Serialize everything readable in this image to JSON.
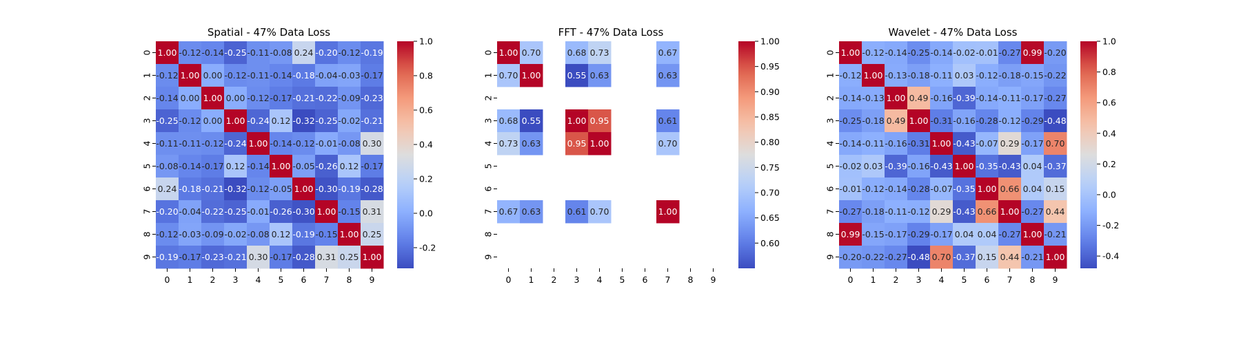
{
  "chart_data": [
    {
      "type": "heatmap",
      "title": "Spatial - 47% Data Loss",
      "x_ticks": [
        "0",
        "1",
        "2",
        "3",
        "4",
        "5",
        "6",
        "7",
        "8",
        "9"
      ],
      "y_ticks": [
        "0",
        "1",
        "2",
        "3",
        "4",
        "5",
        "6",
        "7",
        "8",
        "9"
      ],
      "colormap": "coolwarm",
      "vmin": -0.32,
      "vmax": 1.0,
      "colorbar_ticks": [
        "-0.2",
        "0.0",
        "0.2",
        "0.4",
        "0.6",
        "0.8",
        "1.0"
      ],
      "colorbar_tick_values": [
        -0.2,
        0.0,
        0.2,
        0.4,
        0.6,
        0.8,
        1.0
      ],
      "matrix": [
        [
          1.0,
          -0.12,
          -0.14,
          -0.25,
          -0.11,
          -0.08,
          0.24,
          -0.2,
          -0.12,
          -0.19
        ],
        [
          -0.12,
          1.0,
          -0.0,
          -0.12,
          -0.11,
          -0.14,
          -0.18,
          -0.04,
          -0.03,
          -0.17
        ],
        [
          -0.14,
          -0.0,
          1.0,
          0.0,
          -0.12,
          -0.17,
          -0.21,
          -0.22,
          -0.09,
          -0.23
        ],
        [
          -0.25,
          -0.12,
          0.0,
          1.0,
          -0.24,
          0.12,
          -0.32,
          -0.25,
          -0.02,
          -0.21
        ],
        [
          -0.11,
          -0.11,
          -0.12,
          -0.24,
          1.0,
          -0.14,
          -0.12,
          -0.01,
          -0.08,
          0.3
        ],
        [
          -0.08,
          -0.14,
          -0.17,
          0.12,
          -0.14,
          1.0,
          -0.05,
          -0.26,
          0.12,
          -0.17
        ],
        [
          0.24,
          -0.18,
          -0.21,
          -0.32,
          -0.12,
          -0.05,
          1.0,
          -0.3,
          -0.19,
          -0.28
        ],
        [
          -0.2,
          -0.04,
          -0.22,
          -0.25,
          -0.01,
          -0.26,
          -0.3,
          1.0,
          -0.15,
          0.31
        ],
        [
          -0.12,
          -0.03,
          -0.09,
          -0.02,
          -0.08,
          0.12,
          -0.19,
          -0.15,
          1.0,
          0.25
        ],
        [
          -0.19,
          -0.17,
          -0.23,
          -0.21,
          0.3,
          -0.17,
          -0.28,
          0.31,
          0.25,
          1.0
        ]
      ]
    },
    {
      "type": "heatmap",
      "title": "FFT - 47% Data Loss",
      "x_ticks": [
        "0",
        "1",
        "2",
        "3",
        "4",
        "5",
        "6",
        "7",
        "8",
        "9"
      ],
      "y_ticks": [
        "0",
        "1",
        "2",
        "3",
        "4",
        "5",
        "6",
        "7",
        "8",
        "9"
      ],
      "colormap": "coolwarm",
      "vmin": 0.55,
      "vmax": 1.0,
      "colorbar_ticks": [
        "0.60",
        "0.65",
        "0.70",
        "0.75",
        "0.80",
        "0.85",
        "0.90",
        "0.95",
        "1.00"
      ],
      "colorbar_tick_values": [
        0.6,
        0.65,
        0.7,
        0.75,
        0.8,
        0.85,
        0.9,
        0.95,
        1.0
      ],
      "matrix": [
        [
          1.0,
          0.7,
          null,
          0.68,
          0.73,
          null,
          null,
          0.67,
          null,
          null
        ],
        [
          0.7,
          1.0,
          null,
          0.55,
          0.63,
          null,
          null,
          0.63,
          null,
          null
        ],
        [
          null,
          null,
          null,
          null,
          null,
          null,
          null,
          null,
          null,
          null
        ],
        [
          0.68,
          0.55,
          null,
          1.0,
          0.95,
          null,
          null,
          0.61,
          null,
          null
        ],
        [
          0.73,
          0.63,
          null,
          0.95,
          1.0,
          null,
          null,
          0.7,
          null,
          null
        ],
        [
          null,
          null,
          null,
          null,
          null,
          null,
          null,
          null,
          null,
          null
        ],
        [
          null,
          null,
          null,
          null,
          null,
          null,
          null,
          null,
          null,
          null
        ],
        [
          0.67,
          0.63,
          null,
          0.61,
          0.7,
          null,
          null,
          1.0,
          null,
          null
        ],
        [
          null,
          null,
          null,
          null,
          null,
          null,
          null,
          null,
          null,
          null
        ],
        [
          null,
          null,
          null,
          null,
          null,
          null,
          null,
          null,
          null,
          null
        ]
      ]
    },
    {
      "type": "heatmap",
      "title": "Wavelet - 47% Data Loss",
      "x_ticks": [
        "0",
        "1",
        "2",
        "3",
        "4",
        "5",
        "6",
        "7",
        "8",
        "9"
      ],
      "y_ticks": [
        "0",
        "1",
        "2",
        "3",
        "4",
        "5",
        "6",
        "7",
        "8",
        "9"
      ],
      "colormap": "coolwarm",
      "vmin": -0.48,
      "vmax": 1.0,
      "colorbar_ticks": [
        "-0.4",
        "-0.2",
        "0.0",
        "0.2",
        "0.4",
        "0.6",
        "0.8",
        "1.0"
      ],
      "colorbar_tick_values": [
        -0.4,
        -0.2,
        0.0,
        0.2,
        0.4,
        0.6,
        0.8,
        1.0
      ],
      "matrix": [
        [
          1.0,
          -0.12,
          -0.14,
          -0.25,
          -0.14,
          -0.02,
          -0.01,
          -0.27,
          0.99,
          -0.2
        ],
        [
          -0.12,
          1.0,
          -0.13,
          -0.18,
          -0.11,
          0.03,
          -0.12,
          -0.18,
          -0.15,
          -0.22
        ],
        [
          -0.14,
          -0.13,
          1.0,
          0.49,
          -0.16,
          -0.39,
          -0.14,
          -0.11,
          -0.17,
          -0.27
        ],
        [
          -0.25,
          -0.18,
          0.49,
          1.0,
          -0.31,
          -0.16,
          -0.28,
          -0.12,
          -0.29,
          -0.48
        ],
        [
          -0.14,
          -0.11,
          -0.16,
          -0.31,
          1.0,
          -0.43,
          -0.07,
          0.29,
          -0.17,
          0.7
        ],
        [
          -0.02,
          0.03,
          -0.39,
          -0.16,
          -0.43,
          1.0,
          -0.35,
          -0.43,
          0.04,
          -0.37
        ],
        [
          -0.01,
          -0.12,
          -0.14,
          -0.28,
          -0.07,
          -0.35,
          1.0,
          0.66,
          0.04,
          0.15
        ],
        [
          -0.27,
          -0.18,
          -0.11,
          -0.12,
          0.29,
          -0.43,
          0.66,
          1.0,
          -0.27,
          0.44
        ],
        [
          0.99,
          -0.15,
          -0.17,
          -0.29,
          -0.17,
          0.04,
          0.04,
          -0.27,
          1.0,
          -0.21
        ],
        [
          -0.2,
          -0.22,
          -0.27,
          -0.48,
          0.7,
          -0.37,
          0.15,
          0.44,
          -0.21,
          1.0
        ]
      ]
    }
  ]
}
